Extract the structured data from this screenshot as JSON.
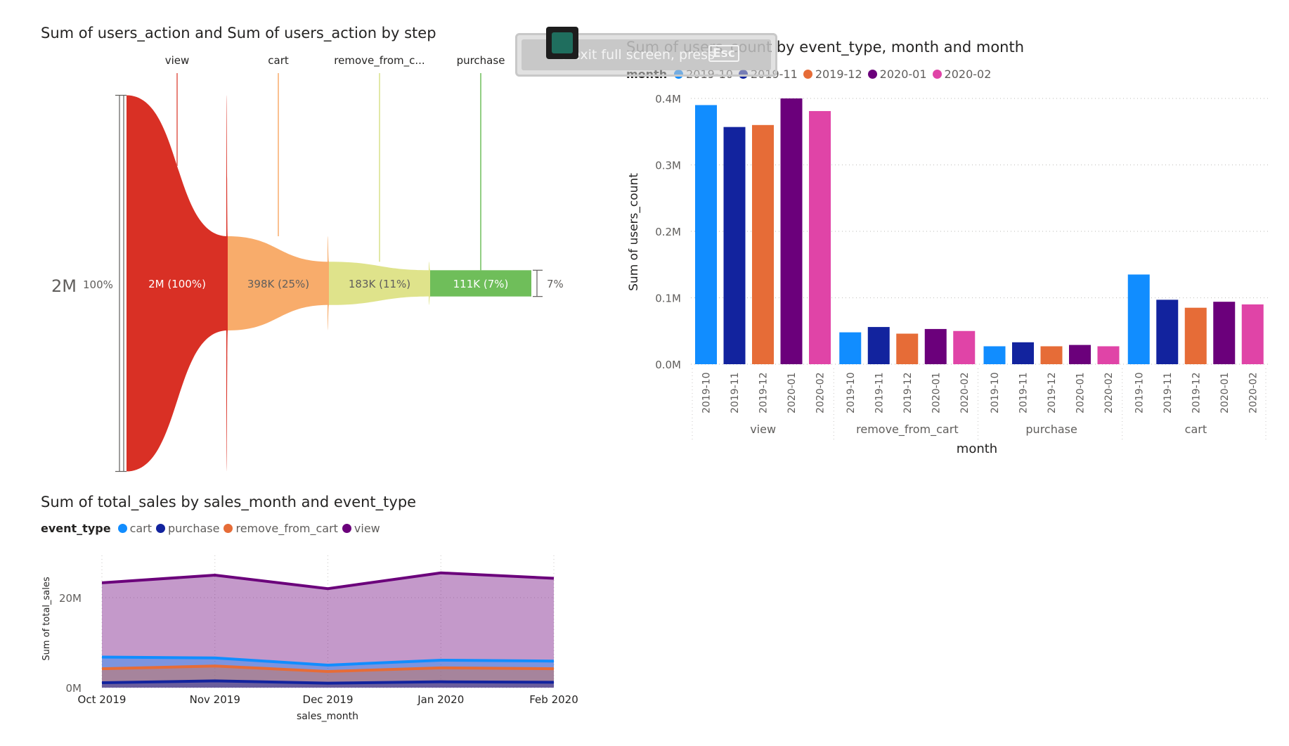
{
  "funnel": {
    "title": "Sum of users_action and Sum of users_action by step",
    "total_label": "2M",
    "total_pct": "100%",
    "end_pct": "7%",
    "colors": [
      "#d93025",
      "#f8ac6b",
      "#dfe38b",
      "#6fbe5a"
    ],
    "line_colors": [
      "#e05a4f",
      "#f8ac6b",
      "#d8e08a",
      "#6fbe5a"
    ],
    "chart_data": {
      "type": "funnel",
      "categories": [
        "view",
        "cart",
        "remove_from_c...",
        "purchase"
      ],
      "values": [
        1590000,
        398000,
        183000,
        111000
      ],
      "value_labels": [
        "2M (100%)",
        "398K (25%)",
        "183K (11%)",
        "111K (7%)"
      ]
    }
  },
  "bars": {
    "title": "Sum of users_count by event_type, month and month",
    "legend_title": "month",
    "ylabel": "Sum of users_count",
    "xlabel": "month",
    "y_ticks": [
      "0.0M",
      "0.1M",
      "0.2M",
      "0.3M",
      "0.4M"
    ],
    "chart_data": {
      "type": "bar",
      "ylim": [
        0,
        0.4
      ],
      "unit": "M",
      "groups": [
        "view",
        "remove_from_cart",
        "purchase",
        "cart"
      ],
      "months": [
        "2019-10",
        "2019-11",
        "2019-12",
        "2020-01",
        "2020-02"
      ],
      "colors": [
        "#118dff",
        "#12239e",
        "#e66c37",
        "#6b007b",
        "#e044a7"
      ],
      "values": [
        [
          0.39,
          0.357,
          0.36,
          0.4,
          0.381
        ],
        [
          0.048,
          0.056,
          0.046,
          0.053,
          0.05
        ],
        [
          0.027,
          0.033,
          0.027,
          0.029,
          0.027
        ],
        [
          0.135,
          0.097,
          0.085,
          0.094,
          0.09
        ]
      ]
    }
  },
  "area": {
    "title": "Sum of total_sales by sales_month and event_type",
    "legend_title": "event_type",
    "ylabel": "Sum of total_sales",
    "xlabel": "sales_month",
    "y_ticks": [
      "0M",
      "20M"
    ],
    "chart_data": {
      "type": "area",
      "ylim": [
        0,
        30
      ],
      "unit": "M",
      "x": [
        "Oct 2019",
        "Nov 2019",
        "Dec 2019",
        "Jan 2020",
        "Feb 2020"
      ],
      "series": [
        {
          "name": "cart",
          "color": "#118dff",
          "values": [
            6.8,
            6.6,
            5.0,
            6.1,
            5.9
          ]
        },
        {
          "name": "purchase",
          "color": "#12239e",
          "values": [
            1.1,
            1.5,
            1.0,
            1.3,
            1.2
          ]
        },
        {
          "name": "remove_from_cart",
          "color": "#e66c37",
          "values": [
            4.2,
            4.8,
            3.6,
            4.4,
            4.2
          ]
        },
        {
          "name": "view",
          "color": "#6b007b",
          "values": [
            23.3,
            25.0,
            22.0,
            25.5,
            24.3
          ]
        }
      ]
    }
  },
  "overlay": {
    "exit_text": "To exit full screen, press",
    "exit_key": "Esc"
  }
}
